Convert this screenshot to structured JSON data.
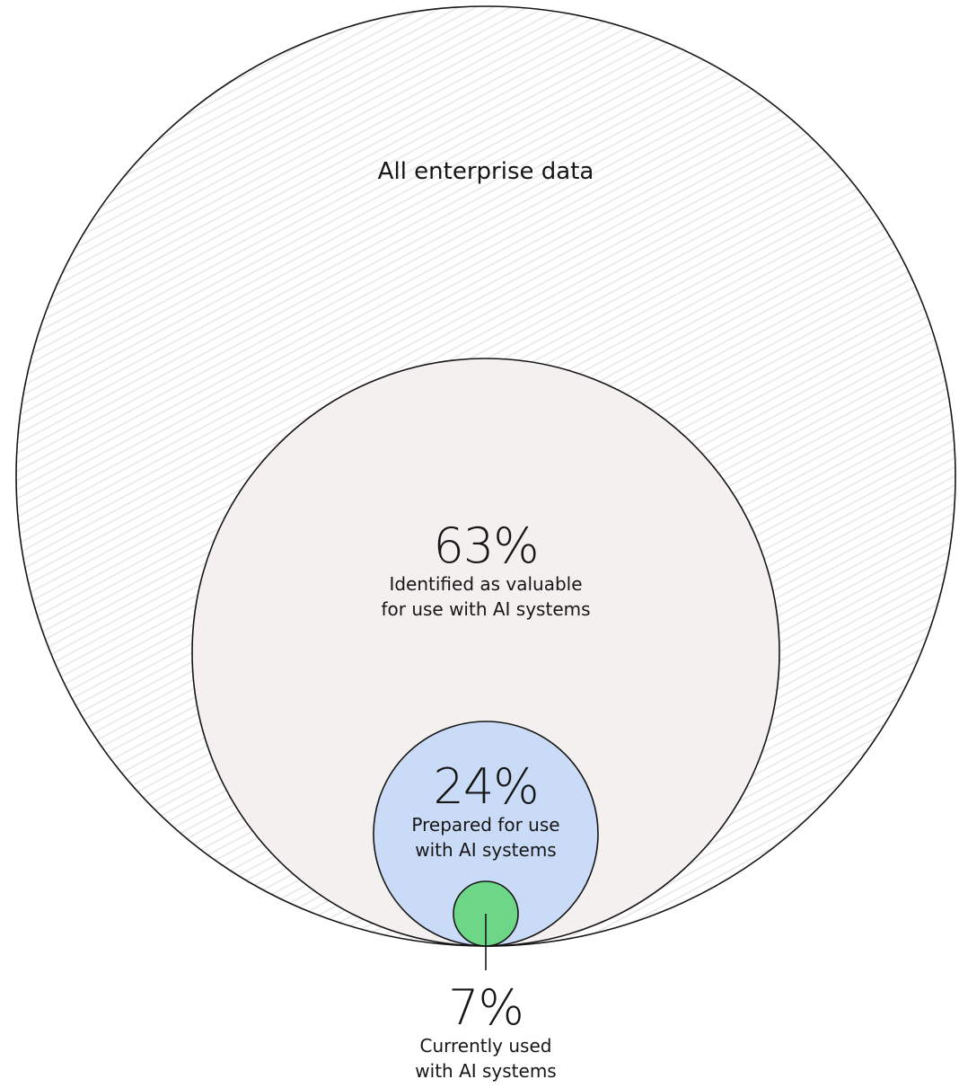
{
  "outer": {
    "label": "All enterprise data",
    "fill_color": "#ffffff",
    "hatch_color": "#e3e3e3"
  },
  "valuable": {
    "percent": "63%",
    "caption_line1": "Identified as valuable",
    "caption_line2": "for use with AI systems",
    "fill_color": "#f3f0ef"
  },
  "prepared": {
    "percent": "24%",
    "caption_line1": "Prepared for use",
    "caption_line2": "with AI systems",
    "fill_color": "#c9dbf7"
  },
  "used": {
    "percent": "7%",
    "caption_line1": "Currently used",
    "caption_line2": "with AI systems",
    "fill_color": "#6dd687"
  },
  "stroke_color": "#161616"
}
